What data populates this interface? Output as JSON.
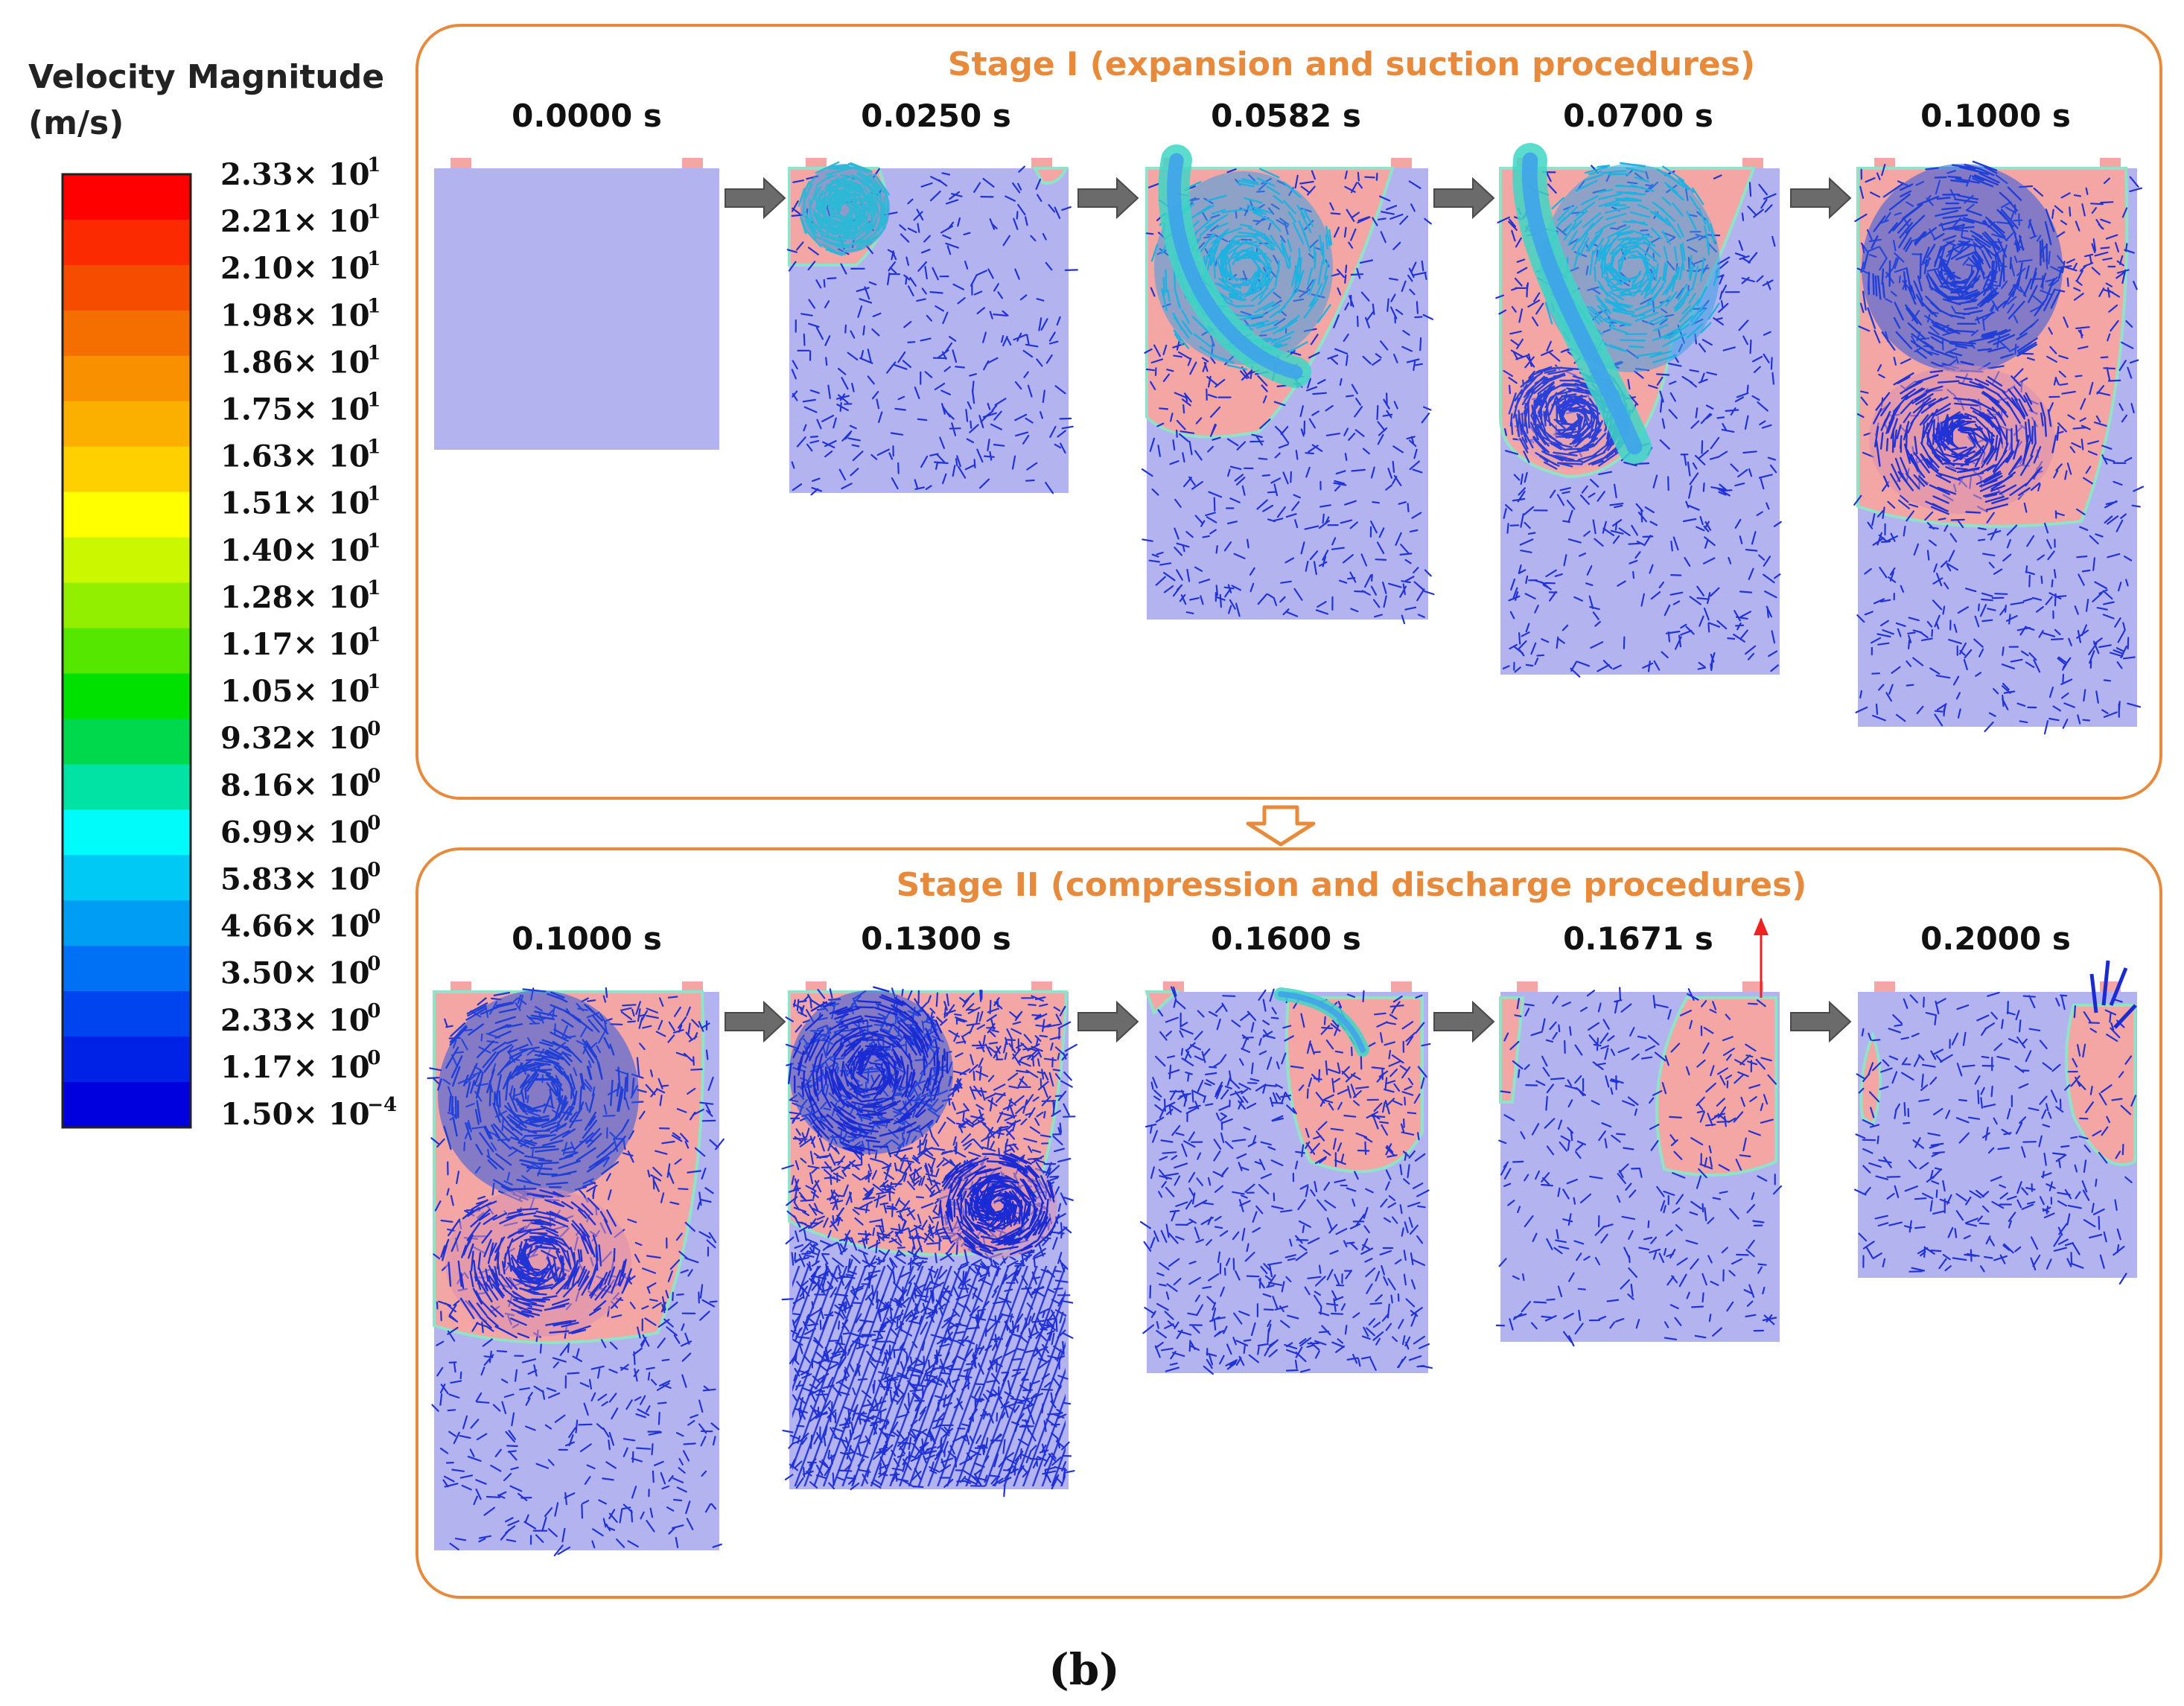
{
  "legend": {
    "title_line1": "Velocity Magnitude",
    "title_line2": "(m/s)",
    "colors": [
      "#ff0000",
      "#fb2a00",
      "#f54c00",
      "#f56e00",
      "#f99000",
      "#fbb000",
      "#ffd000",
      "#ffff00",
      "#cbf700",
      "#92ef00",
      "#55e700",
      "#00e100",
      "#00d94c",
      "#00e3a4",
      "#00fbfb",
      "#00c9f5",
      "#009df5",
      "#0070f5",
      "#0044ef",
      "#0022e7",
      "#0000df"
    ],
    "labels": [
      {
        "mantissa": "2.33",
        "exp": "1"
      },
      {
        "mantissa": "2.21",
        "exp": "1"
      },
      {
        "mantissa": "2.10",
        "exp": "1"
      },
      {
        "mantissa": "1.98",
        "exp": "1"
      },
      {
        "mantissa": "1.86",
        "exp": "1"
      },
      {
        "mantissa": "1.75",
        "exp": "1"
      },
      {
        "mantissa": "1.63",
        "exp": "1"
      },
      {
        "mantissa": "1.51",
        "exp": "1"
      },
      {
        "mantissa": "1.40",
        "exp": "1"
      },
      {
        "mantissa": "1.28",
        "exp": "1"
      },
      {
        "mantissa": "1.17",
        "exp": "1"
      },
      {
        "mantissa": "1.05",
        "exp": "1"
      },
      {
        "mantissa": "9.32",
        "exp": "0"
      },
      {
        "mantissa": "8.16",
        "exp": "0"
      },
      {
        "mantissa": "6.99",
        "exp": "0"
      },
      {
        "mantissa": "5.83",
        "exp": "0"
      },
      {
        "mantissa": "4.66",
        "exp": "0"
      },
      {
        "mantissa": "3.50",
        "exp": "0"
      },
      {
        "mantissa": "2.33",
        "exp": "0"
      },
      {
        "mantissa": "1.17",
        "exp": "0"
      },
      {
        "mantissa": "1.50",
        "exp": "−4"
      }
    ],
    "times_sign": "× 10"
  },
  "stage1": {
    "title": "Stage I (expansion and suction procedures)",
    "times": [
      "0.0000 s",
      "0.0250 s",
      "0.0582 s",
      "0.0700 s",
      "0.1000 s"
    ]
  },
  "stage2": {
    "title": "Stage II (compression and discharge procedures)",
    "times": [
      "0.1000 s",
      "0.1300 s",
      "0.1600 s",
      "0.1671 s",
      "0.2000 s"
    ]
  },
  "caption": "(b)",
  "colors": {
    "accent": "#e88a3c",
    "chamber_fill": "#b3b3f0",
    "pink_region": "#f4a6a4",
    "arrow_gray": "#6b6b6b",
    "vector_dark": "#1f2fdc"
  }
}
